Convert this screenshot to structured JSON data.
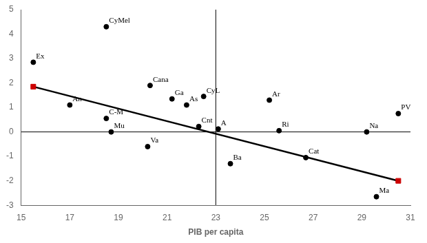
{
  "chart_data": {
    "type": "scatter",
    "xlabel": "PIB per capita",
    "xlim": [
      15,
      31
    ],
    "ylim": [
      -3,
      5
    ],
    "xticks": [
      15,
      17,
      19,
      21,
      23,
      25,
      27,
      29,
      31
    ],
    "yticks": [
      -3,
      -2,
      -1,
      0,
      1,
      2,
      3,
      4,
      5
    ],
    "grid": false,
    "series": [
      {
        "type": "scatter",
        "marker": "circle",
        "color": "#000000",
        "x": [
          15.5,
          18.5,
          17.0,
          18.5,
          18.7,
          20.3,
          20.2,
          21.2,
          21.8,
          22.5,
          22.3,
          23.1,
          25.2,
          25.6,
          23.6,
          26.7,
          29.2,
          30.5,
          29.6
        ],
        "values": [
          2.85,
          4.3,
          1.1,
          0.55,
          0.0,
          1.9,
          -0.6,
          1.35,
          1.1,
          1.45,
          0.22,
          0.12,
          1.3,
          0.05,
          -1.3,
          -1.05,
          0.0,
          0.75,
          -2.65
        ],
        "labels": [
          "Ex",
          "CyMel",
          "An",
          "C-M",
          "Mu",
          "Cana",
          "Va",
          "Ga",
          "As",
          "CyL",
          "Cnt",
          "A",
          "Ar",
          "Ri",
          "Ba",
          "Cat",
          "Na",
          "PV",
          "Ma"
        ]
      },
      {
        "type": "scatter",
        "marker": "square",
        "color": "#cc0000",
        "x": [
          15.5,
          30.5
        ],
        "values": [
          1.85,
          -2.0
        ]
      },
      {
        "type": "line",
        "line_style": "solid",
        "color": "#000000",
        "x": [
          15.5,
          30.5
        ],
        "values": [
          1.85,
          -2.0
        ]
      },
      {
        "type": "line",
        "line_style": "solid",
        "color": "#000000",
        "x": [
          15,
          31
        ],
        "values": [
          0,
          0
        ]
      },
      {
        "type": "line",
        "line_style": "solid",
        "color": "#000000",
        "x": [
          23,
          23
        ],
        "values": [
          -3,
          5
        ]
      }
    ]
  }
}
